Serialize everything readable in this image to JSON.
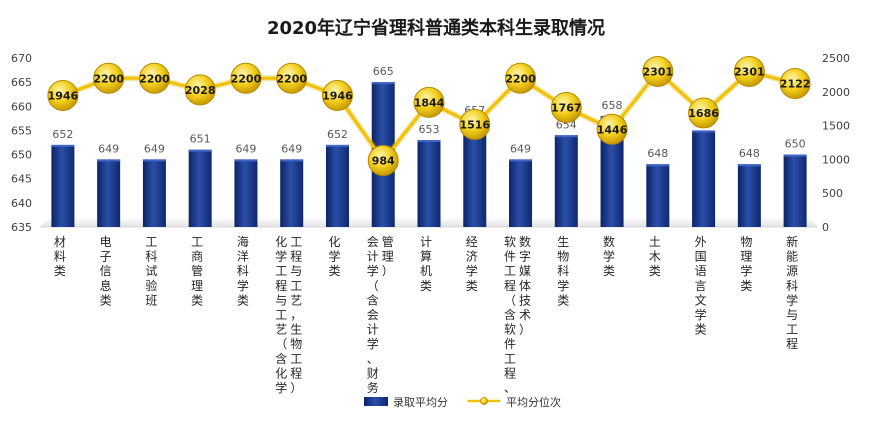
{
  "chart_data": {
    "type": "bar",
    "title": "2020年辽宁省理科普通类本科生录取情况",
    "categories": [
      "材料类",
      "电子信息类",
      "工科试验班",
      "工商管理类",
      "海洋科学类",
      "化学工程与工艺（含化学工程与工艺，生物工程）",
      "化学类",
      "会计学（含会计学、财务管理）",
      "计算机类",
      "经济学类",
      "软件工程（含软件工程、数字媒体技术）",
      "生物科学类",
      "数学类",
      "土木类",
      "外国语言文学类",
      "物理学类",
      "新能源科学与工程"
    ],
    "series": [
      {
        "name": "录取平均分",
        "type": "bar",
        "axis": "left",
        "color": "#1f3c88",
        "values": [
          652,
          649,
          649,
          651,
          649,
          649,
          652,
          665,
          653,
          657,
          649,
          654,
          658,
          648,
          655,
          648,
          650
        ]
      },
      {
        "name": "平均分位次",
        "type": "line",
        "axis": "right",
        "color": "#f2c200",
        "values": [
          1946,
          2200,
          2200,
          2028,
          2200,
          2200,
          1946,
          984,
          1844,
          1516,
          2200,
          1767,
          1446,
          2301,
          1686,
          2301,
          2122
        ]
      }
    ],
    "y_left": {
      "min": 635,
      "max": 670,
      "ticks": [
        635,
        640,
        645,
        650,
        655,
        660,
        665,
        670
      ]
    },
    "y_right": {
      "min": 0,
      "max": 2500,
      "ticks": [
        0,
        500,
        1000,
        1500,
        2000,
        2500
      ]
    },
    "category_lines": [
      [
        "材料类"
      ],
      [
        "电子信息类"
      ],
      [
        "工科试验班"
      ],
      [
        "工商管理类"
      ],
      [
        "海洋科学类"
      ],
      [
        "化学工程与工艺（含化学",
        "工程与工艺，生物工程）"
      ],
      [
        "化学类"
      ],
      [
        "会计学（含会计学、财务",
        "管理）"
      ],
      [
        "计算机类"
      ],
      [
        "经济学类"
      ],
      [
        "软件工程（含软件工程、",
        "数字媒体技术）"
      ],
      [
        "生物科学类"
      ],
      [
        "数学类"
      ],
      [
        "土木类"
      ],
      [
        "外国语言文学类"
      ],
      [
        "物理学类"
      ],
      [
        "新能源科学与工程"
      ]
    ],
    "legend_position": "bottom",
    "grid": false
  }
}
